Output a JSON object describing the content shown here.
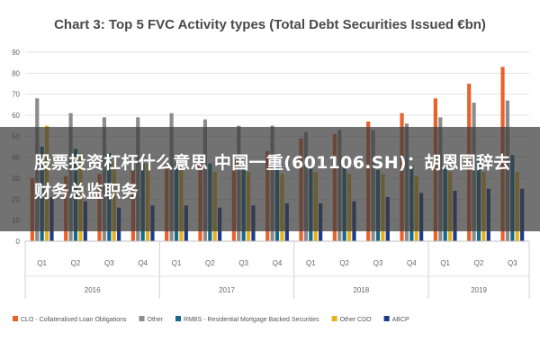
{
  "chart_data": {
    "type": "bar",
    "title": "Chart 3: Top 5 FVC Activity types (Total Debt Securities Issued €bn)",
    "xlabel": "",
    "ylabel": "",
    "ylim": [
      0,
      90
    ],
    "yticks": [
      0,
      10,
      20,
      30,
      40,
      50,
      60,
      70,
      80,
      90
    ],
    "grid": true,
    "legend_position": "bottom",
    "categories": [
      "Q1",
      "Q2",
      "Q3",
      "Q4",
      "Q1",
      "Q2",
      "Q3",
      "Q4",
      "Q1",
      "Q2",
      "Q3",
      "Q4",
      "Q1",
      "Q2",
      "Q3"
    ],
    "groups": [
      {
        "label": "2016",
        "count": 4
      },
      {
        "label": "2017",
        "count": 4
      },
      {
        "label": "2018",
        "count": 4
      },
      {
        "label": "2019",
        "count": 3
      }
    ],
    "series": [
      {
        "name": "CLO - Collateralised Loan Obligations",
        "color": "#e8622c",
        "values": [
          30,
          31,
          32,
          34,
          35,
          37,
          40,
          43,
          49,
          51,
          57,
          61,
          68,
          75,
          83
        ]
      },
      {
        "name": "Other",
        "color": "#8c8c8c",
        "values": [
          68,
          61,
          59,
          59,
          61,
          58,
          55,
          55,
          52,
          53,
          53,
          56,
          59,
          66,
          67
        ]
      },
      {
        "name": "RMBS - Residential Mortgage Backed Securities",
        "color": "#17698a",
        "values": [
          45,
          44,
          42,
          37,
          38,
          37,
          35,
          37,
          35,
          36,
          34,
          36,
          37,
          38,
          41
        ]
      },
      {
        "name": "Other CDO",
        "color": "#e6b21f",
        "values": [
          55,
          42,
          38,
          37,
          34,
          33,
          33,
          32,
          33,
          32,
          32,
          31,
          33,
          33,
          33
        ]
      },
      {
        "name": "ABCP",
        "color": "#1f3a8a",
        "values": [
          21,
          19,
          16,
          17,
          17,
          16,
          17,
          18,
          18,
          19,
          21,
          23,
          24,
          25,
          25
        ]
      }
    ]
  },
  "overlay": {
    "headline": "股票投资杠杆什么意思 中国一重(601106.SH)：胡恩国辞去财务总监职务"
  }
}
